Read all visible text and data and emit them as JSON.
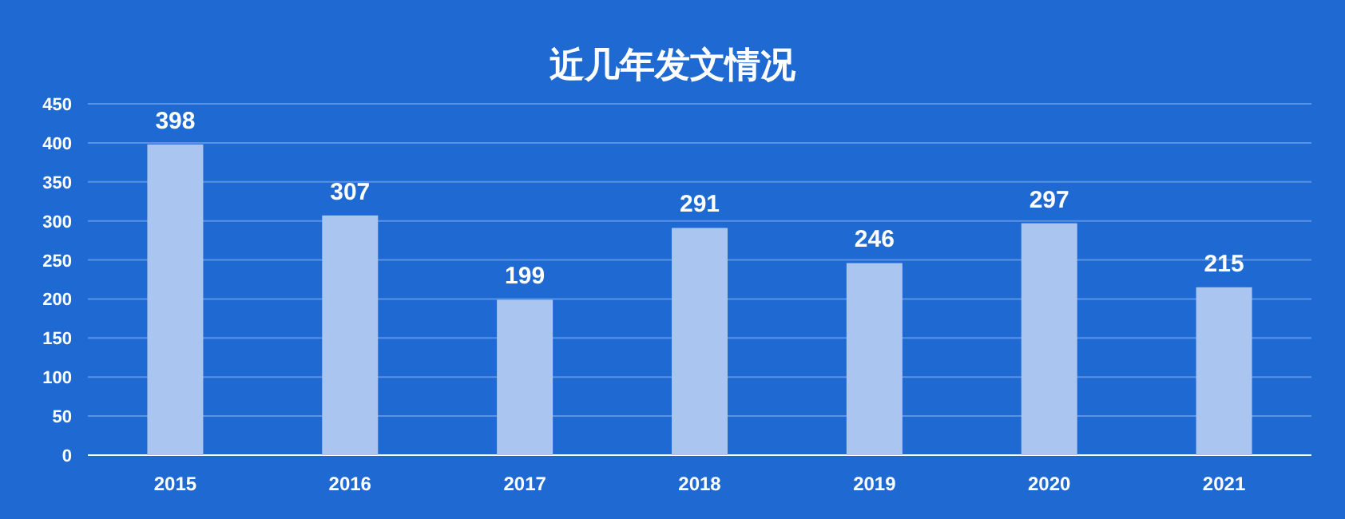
{
  "chart_data": {
    "type": "bar",
    "title": "近几年发文情况",
    "categories": [
      "2015",
      "2016",
      "2017",
      "2018",
      "2019",
      "2020",
      "2021"
    ],
    "values": [
      398,
      307,
      199,
      291,
      246,
      297,
      215
    ],
    "color": "#aac5ef",
    "ylim": [
      0,
      450
    ],
    "yticks": [
      0,
      50,
      100,
      150,
      200,
      250,
      300,
      350,
      400,
      450
    ],
    "grid": "y",
    "data_labels": true
  }
}
